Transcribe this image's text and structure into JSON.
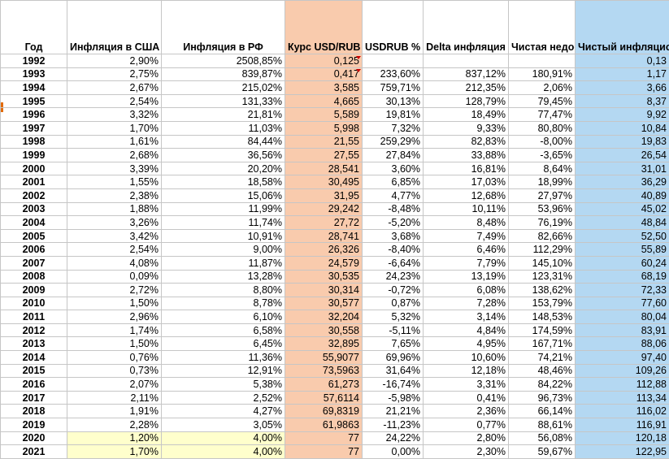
{
  "headers": {
    "year": "Год",
    "us_inflation": "Инфляция в США",
    "ru_inflation": "Инфляция в РФ",
    "usd_rub": "Курс USD/RUB",
    "usdrub_pct": "USDRUB %",
    "delta_inflation": "Delta инфляция",
    "net_undervaluation": "Чистая недооценка",
    "fair_rate": "Чистый инфляционный справедливый курс"
  },
  "colors": {
    "rate_column": "#f9cbad",
    "fair_column": "#b4d8f2",
    "highlight_yellow": "#ffffcc",
    "row_marker": "#e26b0a"
  },
  "rows": [
    {
      "year": "1992",
      "us": "2,90%",
      "ru": "2508,85%",
      "rate": "0,125",
      "pct": "",
      "delta": "",
      "net": "",
      "fair": "0,13"
    },
    {
      "year": "1993",
      "us": "2,75%",
      "ru": "839,87%",
      "rate": "0,417",
      "pct": "233,60%",
      "delta": "837,12%",
      "net": "180,91%",
      "fair": "1,17"
    },
    {
      "year": "1994",
      "us": "2,67%",
      "ru": "215,02%",
      "rate": "3,585",
      "pct": "759,71%",
      "delta": "212,35%",
      "net": "2,06%",
      "fair": "3,66"
    },
    {
      "year": "1995",
      "us": "2,54%",
      "ru": "131,33%",
      "rate": "4,665",
      "pct": "30,13%",
      "delta": "128,79%",
      "net": "79,45%",
      "fair": "8,37"
    },
    {
      "year": "1996",
      "us": "3,32%",
      "ru": "21,81%",
      "rate": "5,589",
      "pct": "19,81%",
      "delta": "18,49%",
      "net": "77,47%",
      "fair": "9,92"
    },
    {
      "year": "1997",
      "us": "1,70%",
      "ru": "11,03%",
      "rate": "5,998",
      "pct": "7,32%",
      "delta": "9,33%",
      "net": "80,80%",
      "fair": "10,84"
    },
    {
      "year": "1998",
      "us": "1,61%",
      "ru": "84,44%",
      "rate": "21,55",
      "pct": "259,29%",
      "delta": "82,83%",
      "net": "-8,00%",
      "fair": "19,83"
    },
    {
      "year": "1999",
      "us": "2,68%",
      "ru": "36,56%",
      "rate": "27,55",
      "pct": "27,84%",
      "delta": "33,88%",
      "net": "-3,65%",
      "fair": "26,54"
    },
    {
      "year": "2000",
      "us": "3,39%",
      "ru": "20,20%",
      "rate": "28,541",
      "pct": "3,60%",
      "delta": "16,81%",
      "net": "8,64%",
      "fair": "31,01"
    },
    {
      "year": "2001",
      "us": "1,55%",
      "ru": "18,58%",
      "rate": "30,495",
      "pct": "6,85%",
      "delta": "17,03%",
      "net": "18,99%",
      "fair": "36,29"
    },
    {
      "year": "2002",
      "us": "2,38%",
      "ru": "15,06%",
      "rate": "31,95",
      "pct": "4,77%",
      "delta": "12,68%",
      "net": "27,97%",
      "fair": "40,89"
    },
    {
      "year": "2003",
      "us": "1,88%",
      "ru": "11,99%",
      "rate": "29,242",
      "pct": "-8,48%",
      "delta": "10,11%",
      "net": "53,96%",
      "fair": "45,02"
    },
    {
      "year": "2004",
      "us": "3,26%",
      "ru": "11,74%",
      "rate": "27,72",
      "pct": "-5,20%",
      "delta": "8,48%",
      "net": "76,19%",
      "fair": "48,84"
    },
    {
      "year": "2005",
      "us": "3,42%",
      "ru": "10,91%",
      "rate": "28,741",
      "pct": "3,68%",
      "delta": "7,49%",
      "net": "82,66%",
      "fair": "52,50"
    },
    {
      "year": "2006",
      "us": "2,54%",
      "ru": "9,00%",
      "rate": "26,326",
      "pct": "-8,40%",
      "delta": "6,46%",
      "net": "112,29%",
      "fair": "55,89"
    },
    {
      "year": "2007",
      "us": "4,08%",
      "ru": "11,87%",
      "rate": "24,579",
      "pct": "-6,64%",
      "delta": "7,79%",
      "net": "145,10%",
      "fair": "60,24"
    },
    {
      "year": "2008",
      "us": "0,09%",
      "ru": "13,28%",
      "rate": "30,535",
      "pct": "24,23%",
      "delta": "13,19%",
      "net": "123,31%",
      "fair": "68,19"
    },
    {
      "year": "2009",
      "us": "2,72%",
      "ru": "8,80%",
      "rate": "30,314",
      "pct": "-0,72%",
      "delta": "6,08%",
      "net": "138,62%",
      "fair": "72,33"
    },
    {
      "year": "2010",
      "us": "1,50%",
      "ru": "8,78%",
      "rate": "30,577",
      "pct": "0,87%",
      "delta": "7,28%",
      "net": "153,79%",
      "fair": "77,60"
    },
    {
      "year": "2011",
      "us": "2,96%",
      "ru": "6,10%",
      "rate": "32,204",
      "pct": "5,32%",
      "delta": "3,14%",
      "net": "148,53%",
      "fair": "80,04"
    },
    {
      "year": "2012",
      "us": "1,74%",
      "ru": "6,58%",
      "rate": "30,558",
      "pct": "-5,11%",
      "delta": "4,84%",
      "net": "174,59%",
      "fair": "83,91"
    },
    {
      "year": "2013",
      "us": "1,50%",
      "ru": "6,45%",
      "rate": "32,895",
      "pct": "7,65%",
      "delta": "4,95%",
      "net": "167,71%",
      "fair": "88,06"
    },
    {
      "year": "2014",
      "us": "0,76%",
      "ru": "11,36%",
      "rate": "55,9077",
      "pct": "69,96%",
      "delta": "10,60%",
      "net": "74,21%",
      "fair": "97,40"
    },
    {
      "year": "2015",
      "us": "0,73%",
      "ru": "12,91%",
      "rate": "73,5963",
      "pct": "31,64%",
      "delta": "12,18%",
      "net": "48,46%",
      "fair": "109,26"
    },
    {
      "year": "2016",
      "us": "2,07%",
      "ru": "5,38%",
      "rate": "61,273",
      "pct": "-16,74%",
      "delta": "3,31%",
      "net": "84,22%",
      "fair": "112,88"
    },
    {
      "year": "2017",
      "us": "2,11%",
      "ru": "2,52%",
      "rate": "57,6114",
      "pct": "-5,98%",
      "delta": "0,41%",
      "net": "96,73%",
      "fair": "113,34"
    },
    {
      "year": "2018",
      "us": "1,91%",
      "ru": "4,27%",
      "rate": "69,8319",
      "pct": "21,21%",
      "delta": "2,36%",
      "net": "66,14%",
      "fair": "116,02"
    },
    {
      "year": "2019",
      "us": "2,28%",
      "ru": "3,05%",
      "rate": "61,9863",
      "pct": "-11,23%",
      "delta": "0,77%",
      "net": "88,61%",
      "fair": "116,91"
    },
    {
      "year": "2020",
      "us": "1,20%",
      "ru": "4,00%",
      "rate": "77",
      "pct": "24,22%",
      "delta": "2,80%",
      "net": "56,08%",
      "fair": "120,18",
      "highlight": true
    },
    {
      "year": "2021",
      "us": "1,70%",
      "ru": "4,00%",
      "rate": "77",
      "pct": "0,00%",
      "delta": "2,30%",
      "net": "59,67%",
      "fair": "122,95",
      "highlight": true
    }
  ]
}
